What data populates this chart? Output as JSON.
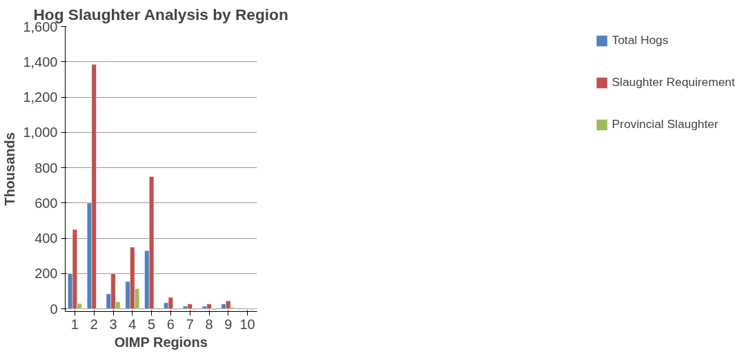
{
  "chart_data": {
    "type": "bar",
    "title": "Hog Slaughter Analysis by Region",
    "xlabel": "OIMP Regions",
    "ylabel": "Thousands",
    "categories": [
      "1",
      "2",
      "3",
      "4",
      "5",
      "6",
      "7",
      "8",
      "9",
      "10"
    ],
    "series": [
      {
        "name": "Total Hogs",
        "color": "#4f81bd",
        "values": [
          200,
          600,
          85,
          155,
          330,
          35,
          15,
          15,
          28,
          null
        ]
      },
      {
        "name": "Slaughter Requirement",
        "color": "#c0504d",
        "values": [
          450,
          1385,
          200,
          350,
          750,
          65,
          28,
          28,
          45,
          null
        ]
      },
      {
        "name": "Provincial Slaughter",
        "color": "#9bbb59",
        "values": [
          30,
          null,
          40,
          115,
          null,
          -5,
          -5,
          -5,
          8,
          -5
        ]
      }
    ],
    "ylim": [
      -15,
      1600
    ],
    "yticks": [
      {
        "value": 0,
        "label": "0"
      },
      {
        "value": 200,
        "label": "200"
      },
      {
        "value": 400,
        "label": "400"
      },
      {
        "value": 600,
        "label": "600"
      },
      {
        "value": 800,
        "label": "800"
      },
      {
        "value": 1000,
        "label": "1,000"
      },
      {
        "value": 1200,
        "label": "1,200"
      },
      {
        "value": 1400,
        "label": "1,400"
      },
      {
        "value": 1600,
        "label": "1,600"
      }
    ],
    "grid": "y",
    "legend": "right"
  }
}
